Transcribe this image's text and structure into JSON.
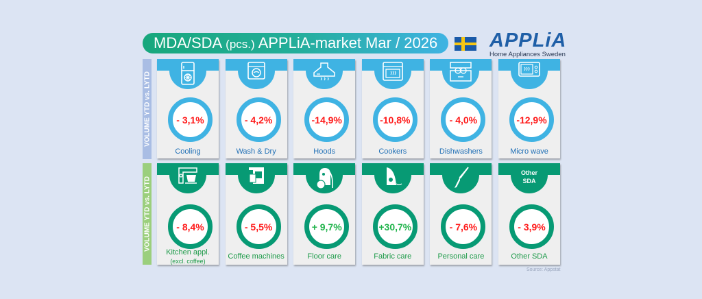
{
  "header": {
    "title_part1": "MDA/SDA",
    "title_part2": "(pcs.)",
    "title_part3": "APPLiA-market Mar / 2026",
    "flag_icon": "sweden-flag-icon",
    "logo_word": "APPLiA",
    "logo_sub": "Home Appliances Sweden"
  },
  "side_labels": {
    "mda": "VOLUME YTD vs. LYTD",
    "sda": "VOLUME YTD vs. LYTD"
  },
  "colors": {
    "mda": "#3fb3e3",
    "sda": "#079a74",
    "negative": "#ff1a1a",
    "positive": "#1fb34a"
  },
  "mda": [
    {
      "label": "Cooling",
      "value": "- 3,1%",
      "icon": "fridge-icon",
      "sign": "neg"
    },
    {
      "label": "Wash & Dry",
      "value": "- 4,2%",
      "icon": "washing-machine-icon",
      "sign": "neg"
    },
    {
      "label": "Hoods",
      "value": "-14,9%",
      "icon": "hood-icon",
      "sign": "neg"
    },
    {
      "label": "Cookers",
      "value": "-10,8%",
      "icon": "oven-icon",
      "sign": "neg"
    },
    {
      "label": "Dishwashers",
      "value": "- 4,0%",
      "icon": "dishwasher-icon",
      "sign": "neg"
    },
    {
      "label": "Micro wave",
      "value": "-12,9%",
      "icon": "microwave-icon",
      "sign": "neg"
    }
  ],
  "sda": [
    {
      "label": "Kitchen appl.",
      "label2": "(excl. coffee)",
      "value": "- 8,4%",
      "icon": "mixer-icon",
      "sign": "neg"
    },
    {
      "label": "Coffee machines",
      "value": "- 5,5%",
      "icon": "coffee-machine-icon",
      "sign": "neg"
    },
    {
      "label": "Floor care",
      "value": "+ 9,7%",
      "icon": "vacuum-icon",
      "sign": "pos"
    },
    {
      "label": "Fabric care",
      "value": "+30,7%",
      "icon": "iron-icon",
      "sign": "pos"
    },
    {
      "label": "Personal care",
      "value": "- 7,6%",
      "icon": "hair-styler-icon",
      "sign": "neg"
    },
    {
      "label": "Other SDA",
      "value": "- 3,9%",
      "icon_text_1": "Other",
      "icon_text_2": "SDA",
      "sign": "neg"
    }
  ],
  "footer": {
    "source": "Source: Appstat"
  }
}
